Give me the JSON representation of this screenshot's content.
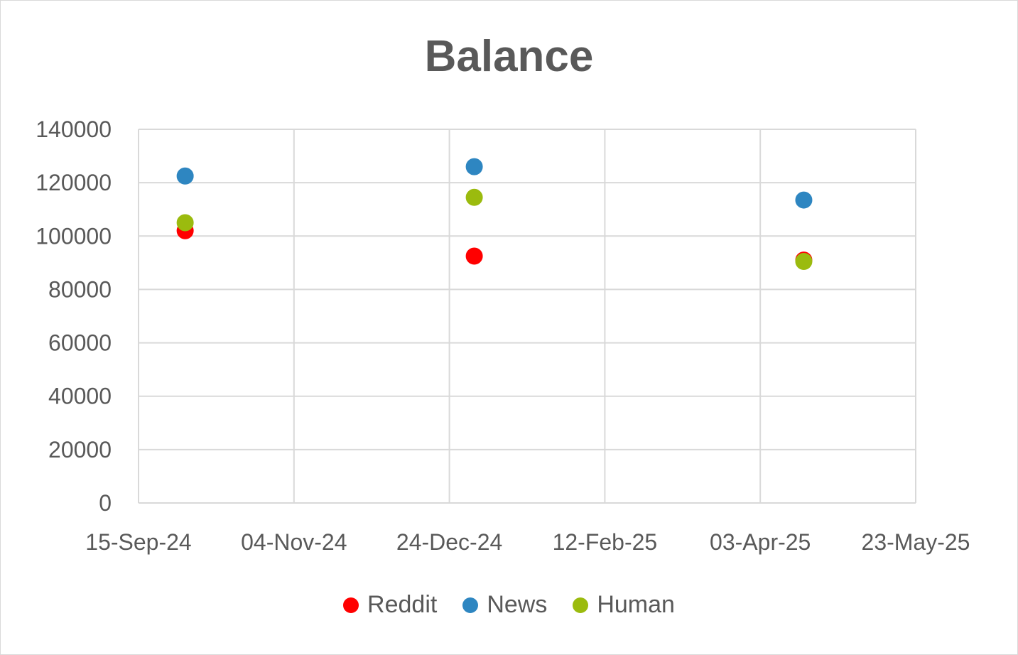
{
  "chart_data": {
    "type": "scatter",
    "title": "Balance",
    "xlabel": "",
    "ylabel": "",
    "x_axis": {
      "type": "date",
      "ticks": [
        "2024-09-15",
        "2024-11-04",
        "2024-12-24",
        "2025-02-12",
        "2025-04-03",
        "2025-05-23"
      ],
      "tick_labels": [
        "15-Sep-24",
        "04-Nov-24",
        "24-Dec-24",
        "12-Feb-25",
        "03-Apr-25",
        "23-May-25"
      ]
    },
    "y_axis": {
      "ylim": [
        0,
        140000
      ],
      "ticks": [
        0,
        20000,
        40000,
        60000,
        80000,
        100000,
        120000,
        140000
      ],
      "tick_labels": [
        "0",
        "20000",
        "40000",
        "60000",
        "80000",
        "100000",
        "120000",
        "140000"
      ]
    },
    "grid": true,
    "legend_position": "bottom",
    "series": [
      {
        "name": "Reddit",
        "color": "#ff0000",
        "points": [
          {
            "x": "2024-09-30",
            "y": 102000
          },
          {
            "x": "2025-01-01",
            "y": 92500
          },
          {
            "x": "2025-04-17",
            "y": 91000
          }
        ]
      },
      {
        "name": "News",
        "color": "#2e86c1",
        "points": [
          {
            "x": "2024-09-30",
            "y": 122500
          },
          {
            "x": "2025-01-01",
            "y": 126000
          },
          {
            "x": "2025-04-17",
            "y": 113500
          }
        ]
      },
      {
        "name": "Human",
        "color": "#9bbb0e",
        "points": [
          {
            "x": "2024-09-30",
            "y": 105000
          },
          {
            "x": "2025-01-01",
            "y": 114500
          },
          {
            "x": "2025-04-17",
            "y": 90500
          }
        ]
      }
    ]
  }
}
